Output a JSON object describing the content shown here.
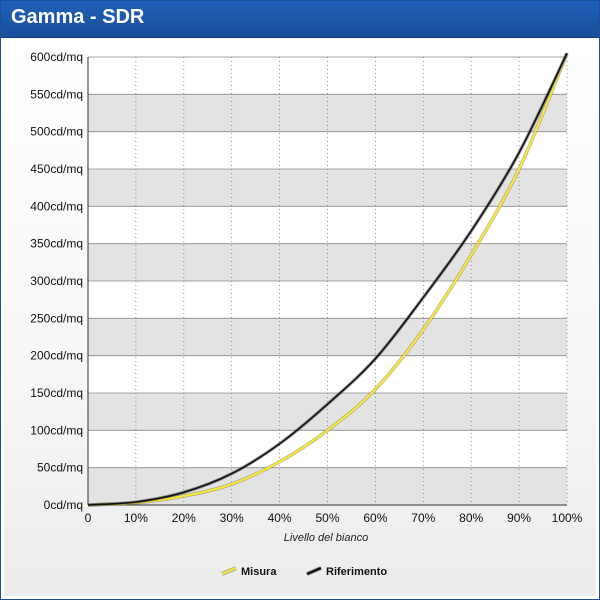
{
  "header": {
    "title": "Gamma - SDR"
  },
  "chart_data": {
    "type": "line",
    "title": "",
    "xlabel": "Livello del bianco",
    "ylabel": "",
    "xlim": [
      0,
      100
    ],
    "ylim": [
      0,
      600
    ],
    "x_ticks": [
      "0",
      "10%",
      "20%",
      "30%",
      "40%",
      "50%",
      "60%",
      "70%",
      "80%",
      "90%",
      "100%"
    ],
    "y_ticks": [
      "0cd/mq",
      "50cd/mq",
      "100cd/mq",
      "150cd/mq",
      "200cd/mq",
      "250cd/mq",
      "300cd/mq",
      "350cd/mq",
      "400cd/mq",
      "450cd/mq",
      "500cd/mq",
      "550cd/mq",
      "600cd/mq"
    ],
    "grid": true,
    "legend_position": "bottom-center",
    "x": [
      0,
      10,
      20,
      30,
      40,
      50,
      60,
      70,
      80,
      90,
      100
    ],
    "series": [
      {
        "name": "Misura",
        "color": "#f5e63c",
        "values": [
          0,
          3,
          12,
          28,
          58,
          100,
          155,
          235,
          335,
          450,
          605
        ]
      },
      {
        "name": "Riferimento",
        "color": "#111111",
        "values": [
          0,
          4,
          17,
          42,
          82,
          135,
          196,
          278,
          367,
          472,
          605
        ]
      }
    ]
  }
}
